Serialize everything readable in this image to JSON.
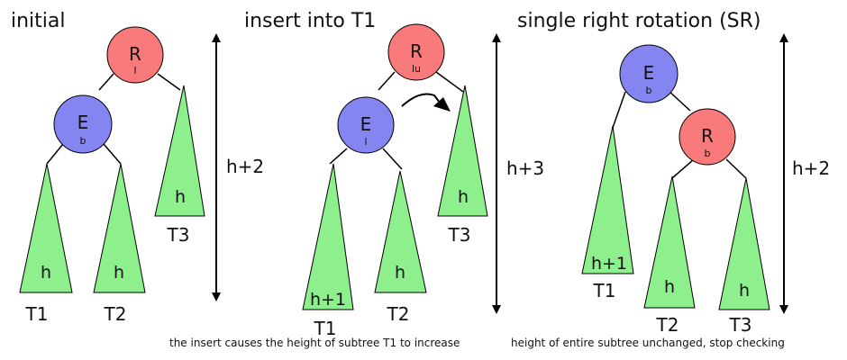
{
  "colors": {
    "node_r": "#f87a7a",
    "node_e": "#8585f2",
    "subtree": "#8df08d"
  },
  "panels": [
    {
      "title": "initial",
      "nodes": [
        {
          "letter": "R",
          "balance": "l"
        },
        {
          "letter": "E",
          "balance": "b"
        }
      ],
      "subtrees": [
        {
          "name": "T1",
          "height_label": "h"
        },
        {
          "name": "T2",
          "height_label": "h"
        },
        {
          "name": "T3",
          "height_label": "h"
        }
      ],
      "total_height": "h+2"
    },
    {
      "title": "insert into T1",
      "nodes": [
        {
          "letter": "R",
          "balance": "lu"
        },
        {
          "letter": "E",
          "balance": "l"
        }
      ],
      "subtrees": [
        {
          "name": "T1",
          "height_label": "h+1"
        },
        {
          "name": "T2",
          "height_label": "h"
        },
        {
          "name": "T3",
          "height_label": "h"
        }
      ],
      "total_height": "h+3",
      "caption": "the insert causes the height of subtree T1 to increase"
    },
    {
      "title": "single right rotation (SR)",
      "nodes": [
        {
          "letter": "E",
          "balance": "b"
        },
        {
          "letter": "R",
          "balance": "b"
        }
      ],
      "subtrees": [
        {
          "name": "T1",
          "height_label": "h+1"
        },
        {
          "name": "T2",
          "height_label": "h"
        },
        {
          "name": "T3",
          "height_label": "h"
        }
      ],
      "total_height": "h+2",
      "caption": "height of entire subtree unchanged, stop checking"
    }
  ]
}
